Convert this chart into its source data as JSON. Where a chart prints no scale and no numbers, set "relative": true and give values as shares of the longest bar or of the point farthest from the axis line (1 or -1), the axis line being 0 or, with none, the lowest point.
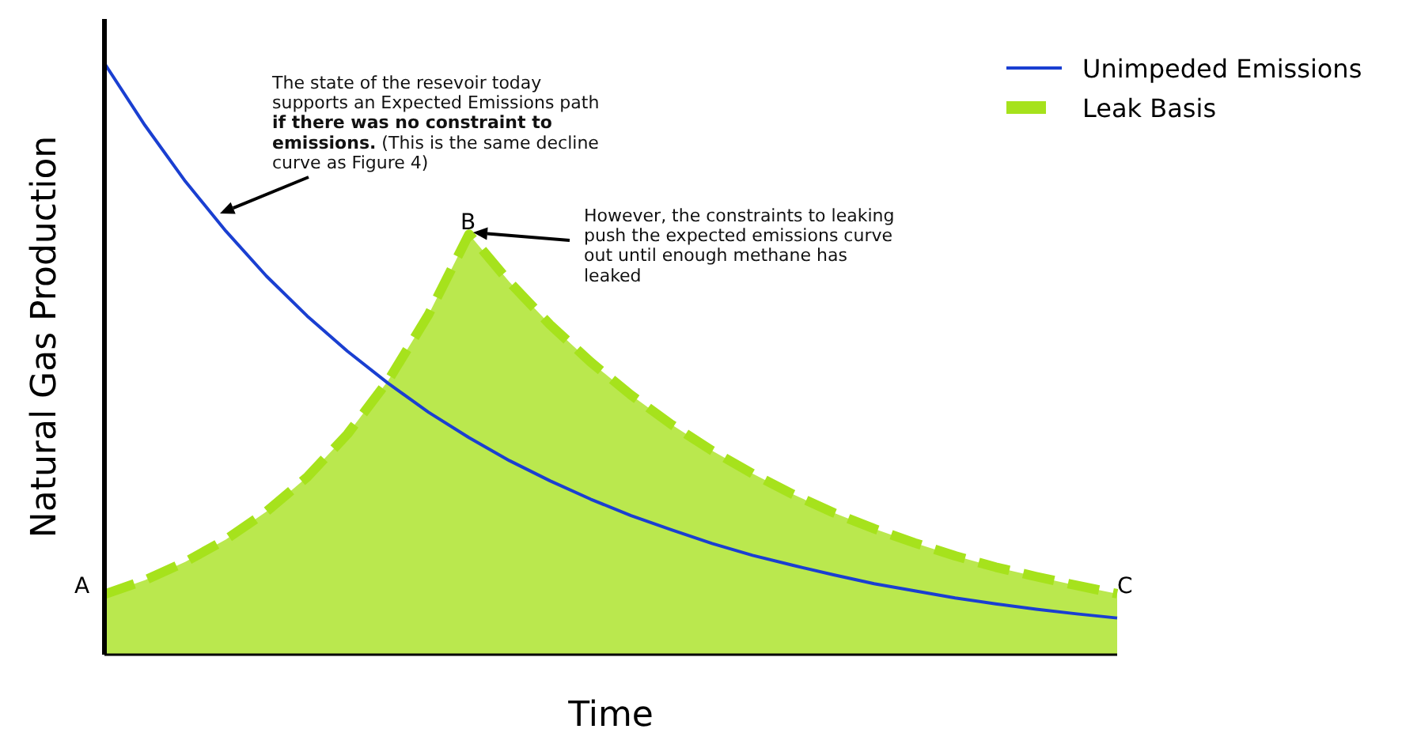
{
  "chart_data": {
    "type": "line",
    "relative": true,
    "xlabel": "Time",
    "ylabel": "Natural Gas Production",
    "legend": "top right",
    "categories": [
      null,
      null,
      null,
      null,
      null,
      null,
      null,
      null,
      null,
      null,
      null,
      null,
      null,
      null,
      null,
      null,
      null,
      null,
      null,
      null,
      null,
      null,
      null,
      null,
      null,
      null
    ],
    "series": [
      {
        "name": "Unimpeded Emissions",
        "color": "#1a3fd1",
        "values": [
          1,
          0.895,
          0.8,
          0.716,
          0.64,
          0.573,
          0.513,
          0.459,
          0.41,
          0.367,
          0.328,
          0.294,
          0.263,
          0.235,
          0.211,
          0.188,
          0.168,
          0.151,
          0.135,
          0.12,
          0.108,
          0.096,
          0.086,
          0.077,
          0.069,
          0.062
        ]
      },
      {
        "name": "Leak Basis",
        "type": "area",
        "color": "#a6e21c",
        "line_style": "dashed",
        "values": [
          0.102,
          0.126,
          0.157,
          0.195,
          0.242,
          0.3,
          0.373,
          0.463,
          0.575,
          0.711,
          0.63,
          0.558,
          0.495,
          0.439,
          0.389,
          0.345,
          0.306,
          0.271,
          0.24,
          0.213,
          0.189,
          0.167,
          0.148,
          0.132,
          0.117,
          0.103
        ]
      }
    ],
    "annotations": [
      "The state of the resevoir today supports an Expected Emissions path",
      "if there was no constraint to emissions.",
      "(This is the same decline curve as Figure 4)",
      "However, the constraints to leaking push the expected emissions curve out until enough methane has leaked",
      "A",
      "B",
      "C"
    ]
  }
}
